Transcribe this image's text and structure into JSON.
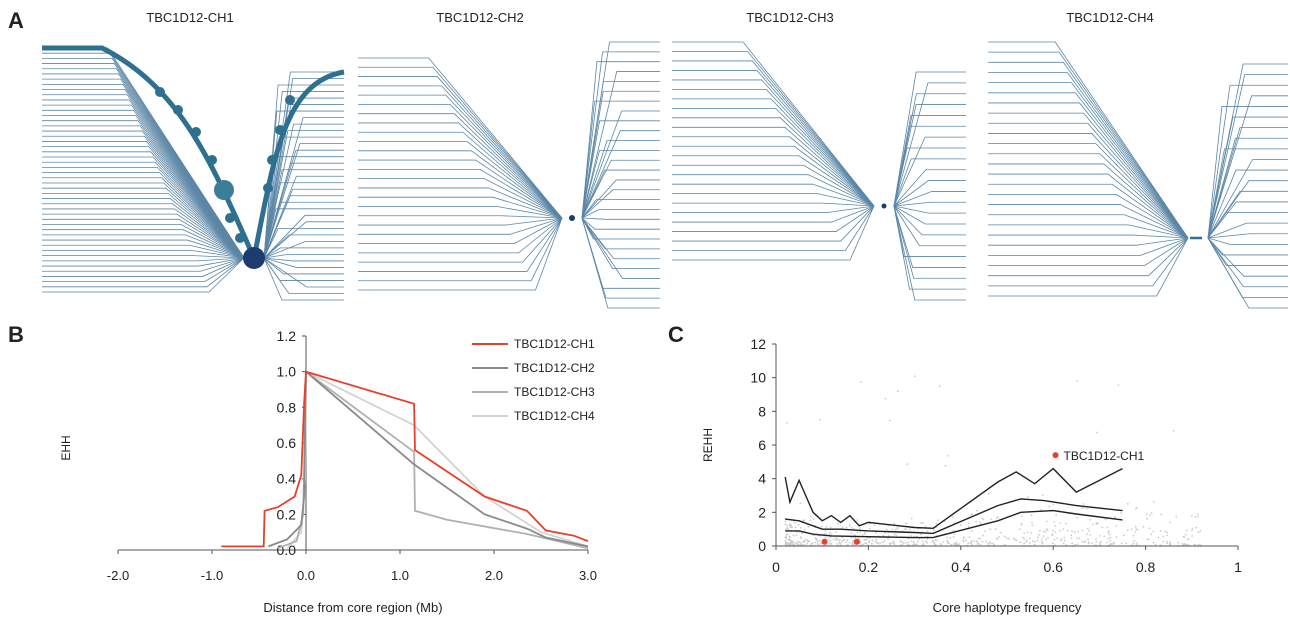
{
  "panels": {
    "a_letter": "A",
    "b_letter": "B",
    "c_letter": "C"
  },
  "haplotype_bifurcation": {
    "titles": [
      "TBC1D12-CH1",
      "TBC1D12-CH2",
      "TBC1D12-CH3",
      "TBC1D12-CH4"
    ],
    "colors": {
      "branch": "#5b86a6",
      "thick": "#2f6f8f",
      "core": "#1f3a6e"
    }
  },
  "chart_data": [
    {
      "type": "line",
      "panel": "B",
      "xlabel": "Distance from core region (Mb)",
      "ylabel": "EHH",
      "xlim": [
        -2.0,
        3.0
      ],
      "ylim": [
        0.0,
        1.2
      ],
      "x_ticks": [
        "-2.0",
        "-1.0",
        "0.0",
        "1.0",
        "2.0",
        "3.0"
      ],
      "y_ticks": [
        "0.0",
        "0.2",
        "0.4",
        "0.6",
        "0.8",
        "1.0",
        "1.2"
      ],
      "legend_position": "top-right",
      "series": [
        {
          "name": "TBC1D12-CH1",
          "color": "#e8402a",
          "points": [
            [
              -0.9,
              0.02
            ],
            [
              -0.45,
              0.02
            ],
            [
              -0.44,
              0.22
            ],
            [
              -0.3,
              0.24
            ],
            [
              -0.12,
              0.3
            ],
            [
              -0.05,
              0.42
            ],
            [
              -0.02,
              0.82
            ],
            [
              0.0,
              1.0
            ],
            [
              1.15,
              0.82
            ],
            [
              1.16,
              0.56
            ],
            [
              1.9,
              0.3
            ],
            [
              2.35,
              0.22
            ],
            [
              2.55,
              0.11
            ],
            [
              2.85,
              0.08
            ],
            [
              3.0,
              0.05
            ]
          ]
        },
        {
          "name": "TBC1D12-CH2",
          "color": "#8a8a8a",
          "points": [
            [
              -0.4,
              0.02
            ],
            [
              -0.2,
              0.06
            ],
            [
              -0.05,
              0.14
            ],
            [
              -0.02,
              0.3
            ],
            [
              0.0,
              1.0
            ],
            [
              1.15,
              0.48
            ],
            [
              1.9,
              0.2
            ],
            [
              2.35,
              0.12
            ],
            [
              2.55,
              0.07
            ],
            [
              3.0,
              0.02
            ]
          ]
        },
        {
          "name": "TBC1D12-CH3",
          "color": "#b0b0b0",
          "points": [
            [
              -0.3,
              0.01
            ],
            [
              -0.1,
              0.05
            ],
            [
              -0.03,
              0.2
            ],
            [
              0.0,
              1.0
            ],
            [
              1.15,
              0.55
            ],
            [
              1.16,
              0.22
            ],
            [
              1.5,
              0.17
            ],
            [
              2.35,
              0.09
            ],
            [
              3.0,
              0.01
            ]
          ]
        },
        {
          "name": "TBC1D12-CH4",
          "color": "#d3d3d3",
          "points": [
            [
              -0.2,
              0.01
            ],
            [
              -0.05,
              0.1
            ],
            [
              -0.01,
              0.4
            ],
            [
              0.0,
              1.0
            ],
            [
              1.15,
              0.7
            ],
            [
              1.9,
              0.3
            ],
            [
              2.5,
              0.1
            ],
            [
              3.0,
              0.02
            ]
          ]
        }
      ]
    },
    {
      "type": "scatter",
      "panel": "C",
      "xlabel": "Core haplotype frequency",
      "ylabel": "REHH",
      "xlim": [
        0,
        1
      ],
      "ylim": [
        0,
        12
      ],
      "x_ticks": [
        "0",
        "0.2",
        "0.4",
        "0.6",
        "0.8",
        "1"
      ],
      "y_ticks": [
        "0",
        "2",
        "4",
        "6",
        "8",
        "10",
        "12"
      ],
      "colors": {
        "background_points": "#c9ccd1",
        "lines": "#222222",
        "highlight": "#e8402a"
      },
      "highlight_points": [
        {
          "label": "TBC1D12-CH1",
          "x": 0.605,
          "y": 5.4
        },
        {
          "label": "",
          "x": 0.105,
          "y": 0.25
        },
        {
          "label": "",
          "x": 0.175,
          "y": 0.25
        }
      ],
      "percentile_lines": [
        {
          "points": [
            [
              0.02,
              4.1
            ],
            [
              0.03,
              2.6
            ],
            [
              0.05,
              3.9
            ],
            [
              0.08,
              2.0
            ],
            [
              0.1,
              1.5
            ],
            [
              0.12,
              1.8
            ],
            [
              0.14,
              1.4
            ],
            [
              0.16,
              1.8
            ],
            [
              0.18,
              1.2
            ],
            [
              0.2,
              1.4
            ],
            [
              0.3,
              1.1
            ],
            [
              0.34,
              1.05
            ],
            [
              0.48,
              3.8
            ],
            [
              0.52,
              4.4
            ],
            [
              0.56,
              3.7
            ],
            [
              0.6,
              4.6
            ],
            [
              0.65,
              3.2
            ],
            [
              0.75,
              4.6
            ]
          ]
        },
        {
          "points": [
            [
              0.02,
              1.6
            ],
            [
              0.05,
              1.5
            ],
            [
              0.08,
              1.2
            ],
            [
              0.1,
              1.0
            ],
            [
              0.14,
              1.0
            ],
            [
              0.2,
              0.9
            ],
            [
              0.3,
              0.8
            ],
            [
              0.34,
              0.75
            ],
            [
              0.48,
              2.4
            ],
            [
              0.53,
              2.8
            ],
            [
              0.58,
              2.7
            ],
            [
              0.65,
              2.4
            ],
            [
              0.75,
              2.1
            ]
          ]
        },
        {
          "points": [
            [
              0.02,
              0.9
            ],
            [
              0.05,
              0.9
            ],
            [
              0.08,
              0.7
            ],
            [
              0.12,
              0.6
            ],
            [
              0.2,
              0.55
            ],
            [
              0.3,
              0.5
            ],
            [
              0.34,
              0.5
            ],
            [
              0.48,
              1.5
            ],
            [
              0.53,
              2.0
            ],
            [
              0.6,
              2.1
            ],
            [
              0.65,
              1.9
            ],
            [
              0.75,
              1.55
            ]
          ]
        }
      ]
    }
  ]
}
